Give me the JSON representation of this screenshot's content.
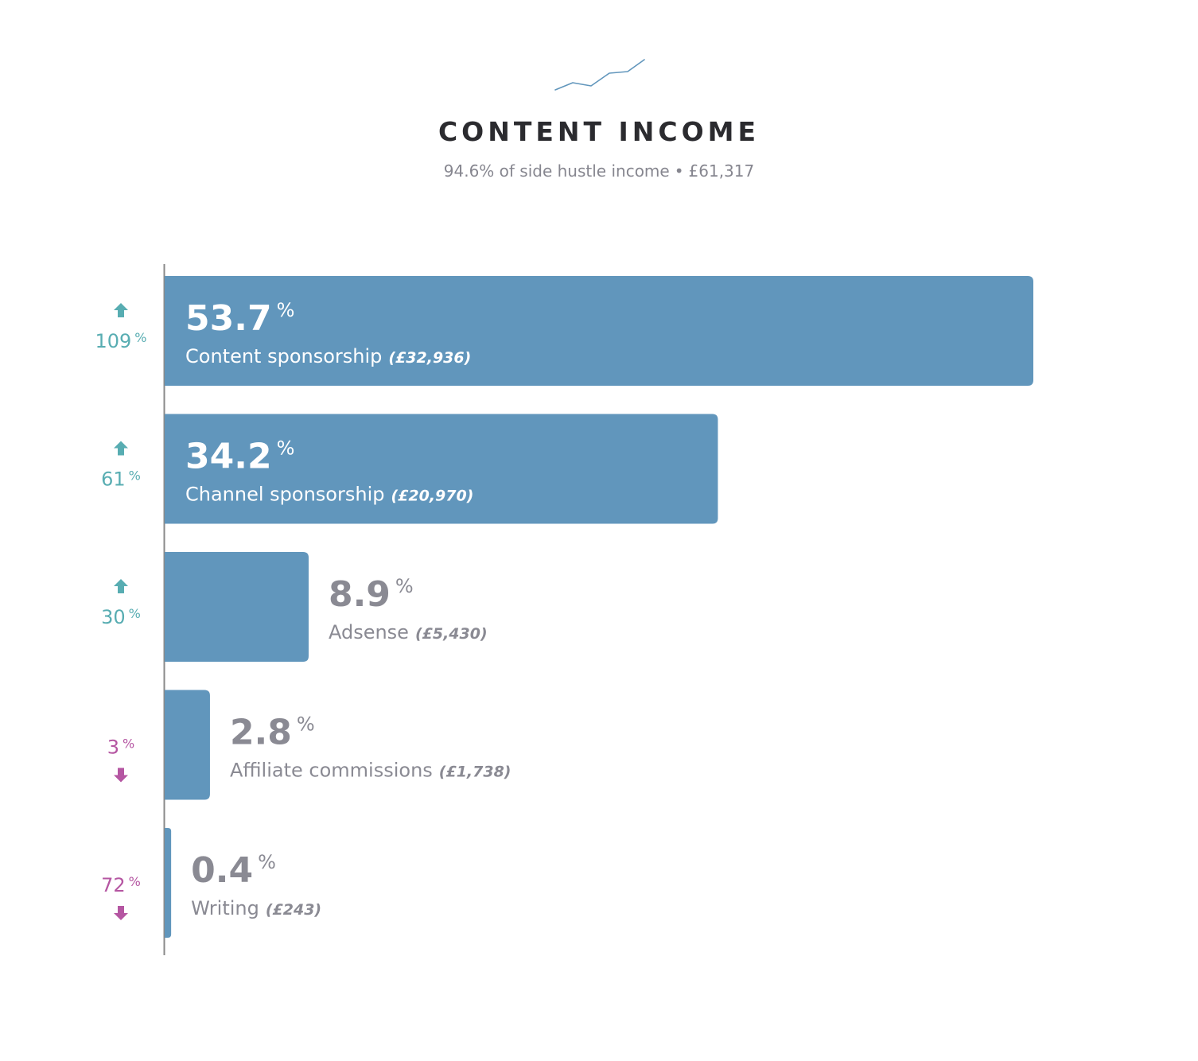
{
  "header": {
    "icon": "trend-line-icon",
    "title": "CONTENT INCOME",
    "subtitle_share": "94.6% of side hustle income",
    "subtitle_total": "£61,317"
  },
  "colors": {
    "bar": "#6196bc",
    "title": "#2b2b2f",
    "subtitle": "#86868f",
    "label_outside": "#8a8a93",
    "label_inside": "#ffffff",
    "change_up": "#58adb2",
    "change_down": "#b556a2",
    "axis": "#8a8a8a"
  },
  "chart_data": {
    "type": "bar",
    "orientation": "horizontal",
    "xlim": [
      0,
      53.7
    ],
    "unit": "%",
    "categories": [
      "Content sponsorship",
      "Channel sponsorship",
      "Adsense",
      "Affiliate commissions",
      "Writing"
    ],
    "values": [
      53.7,
      34.2,
      8.9,
      2.8,
      0.4
    ],
    "value_labels": [
      "53.7",
      "34.2",
      "8.9",
      "2.8",
      "0.4"
    ],
    "amounts": [
      "(£32,936)",
      "(£20,970)",
      "(£5,430)",
      "(£1,738)",
      "(£243)"
    ],
    "changes": [
      {
        "value": "109",
        "direction": "up"
      },
      {
        "value": "61",
        "direction": "up"
      },
      {
        "value": "30",
        "direction": "up"
      },
      {
        "value": "3",
        "direction": "down"
      },
      {
        "value": "72",
        "direction": "down"
      }
    ]
  }
}
